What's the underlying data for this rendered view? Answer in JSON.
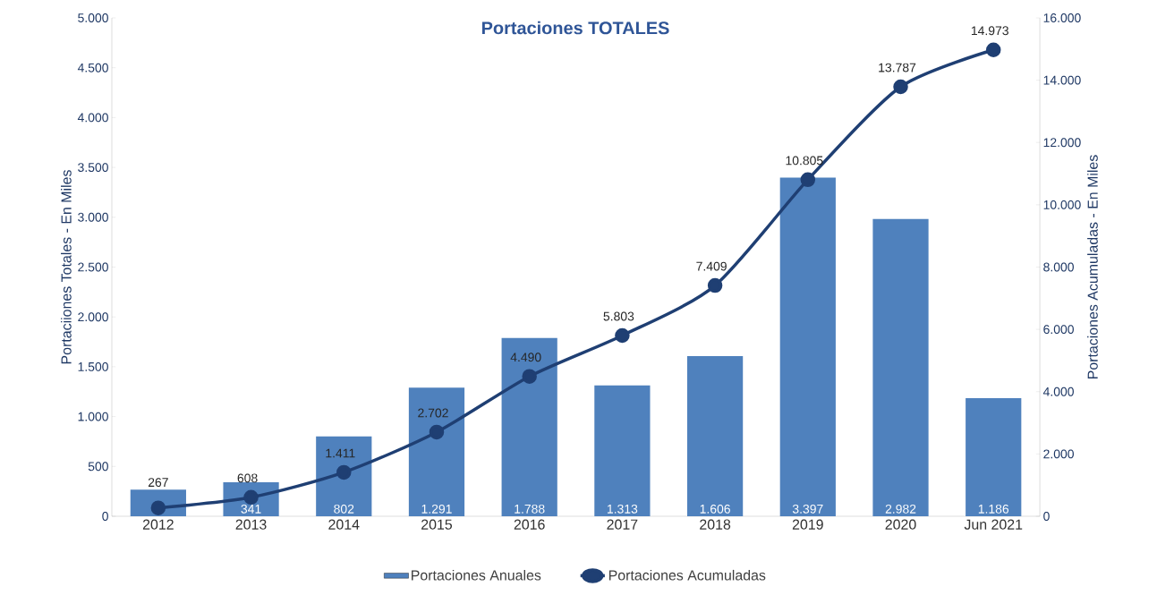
{
  "chart_data": {
    "type": "bar",
    "title": "Portaciones TOTALES",
    "ylabel": "Portaciiones Totales - En Miles",
    "y2label": "Portaciones Acumuladas - En Miles",
    "categories": [
      "2012",
      "2013",
      "2014",
      "2015",
      "2016",
      "2017",
      "2018",
      "2019",
      "2020",
      "Jun 2021"
    ],
    "series": [
      {
        "name": "Portaciones Anuales",
        "color": "#4f81bd",
        "values": [
          267,
          341,
          802,
          1291,
          1788,
          1313,
          1606,
          3397,
          2982,
          1186
        ],
        "value_labels": [
          "267",
          "341",
          "802",
          "1.291",
          "1.788",
          "1.313",
          "1.606",
          "3.397",
          "2.982",
          "1.186"
        ]
      },
      {
        "name": "Portaciones Acumuladas",
        "type": "line",
        "axis": "y2",
        "color": "#1f3f73",
        "values": [
          267,
          608,
          1411,
          2702,
          4490,
          5803,
          7409,
          10805,
          13787,
          14973
        ],
        "value_labels": [
          null,
          "608",
          "1.411",
          "2.702",
          "4.490",
          "5.803",
          "7.409",
          "10.805",
          "13.787",
          "14.973"
        ]
      }
    ],
    "ylim": [
      0,
      5000
    ],
    "yticks": [
      0,
      500,
      {
        "value": 1000,
        "label": "1.000"
      },
      {
        "value": 1500,
        "label": "1.500"
      },
      {
        "value": 2000,
        "label": "2.000"
      },
      {
        "value": 2500,
        "label": "2.500"
      },
      {
        "value": 3000,
        "label": "3.000"
      },
      {
        "value": 3500,
        "label": "3.500"
      },
      {
        "value": 4000,
        "label": "4.000"
      },
      {
        "value": 4500,
        "label": "4.500"
      },
      {
        "value": 5000,
        "label": "5.000"
      }
    ],
    "y2lim": [
      0,
      16000
    ],
    "y2ticks": [
      0,
      {
        "value": 2000,
        "label": "2.000"
      },
      {
        "value": 4000,
        "label": "4.000"
      },
      {
        "value": 6000,
        "label": "6.000"
      },
      {
        "value": 8000,
        "label": "8.000"
      },
      {
        "value": 10000,
        "label": "10.000"
      },
      {
        "value": 12000,
        "label": "12.000"
      },
      {
        "value": 14000,
        "label": "14.000"
      },
      {
        "value": 16000,
        "label": "16.000"
      }
    ],
    "legend": "bottom",
    "marker": "circle",
    "line_style": "solid"
  }
}
